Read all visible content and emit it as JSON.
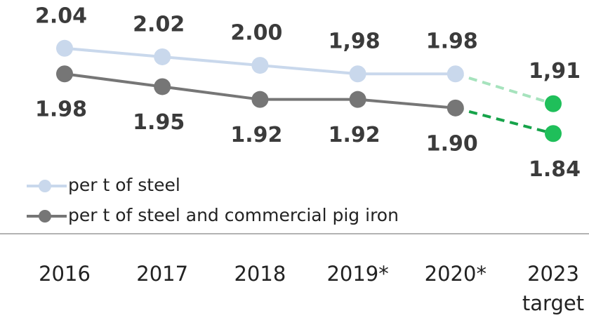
{
  "chart_data": {
    "type": "line",
    "categories": [
      "2016",
      "2017",
      "2018",
      "2019*",
      "2020*",
      "2023 target"
    ],
    "series": [
      {
        "name": "per t of steel",
        "color": "#c9d8ec",
        "target_color": "#a6e3bd",
        "values": [
          2.04,
          2.02,
          2.0,
          1.98,
          1.98,
          1.91
        ],
        "value_labels": [
          "2.04",
          "2.02",
          "2.00",
          "1,98",
          "1.98",
          "1,91"
        ]
      },
      {
        "name": "per t of steel and commercial pig iron",
        "color": "#767676",
        "target_color": "#16a34a",
        "values": [
          1.98,
          1.95,
          1.92,
          1.92,
          1.9,
          1.84
        ],
        "value_labels": [
          "1.98",
          "1.95",
          "1.92",
          "1.92",
          "1.90",
          "1.84"
        ]
      }
    ],
    "target_marker_color": "#1fbf5a",
    "ylim": [
      1.6,
      2.15
    ]
  }
}
